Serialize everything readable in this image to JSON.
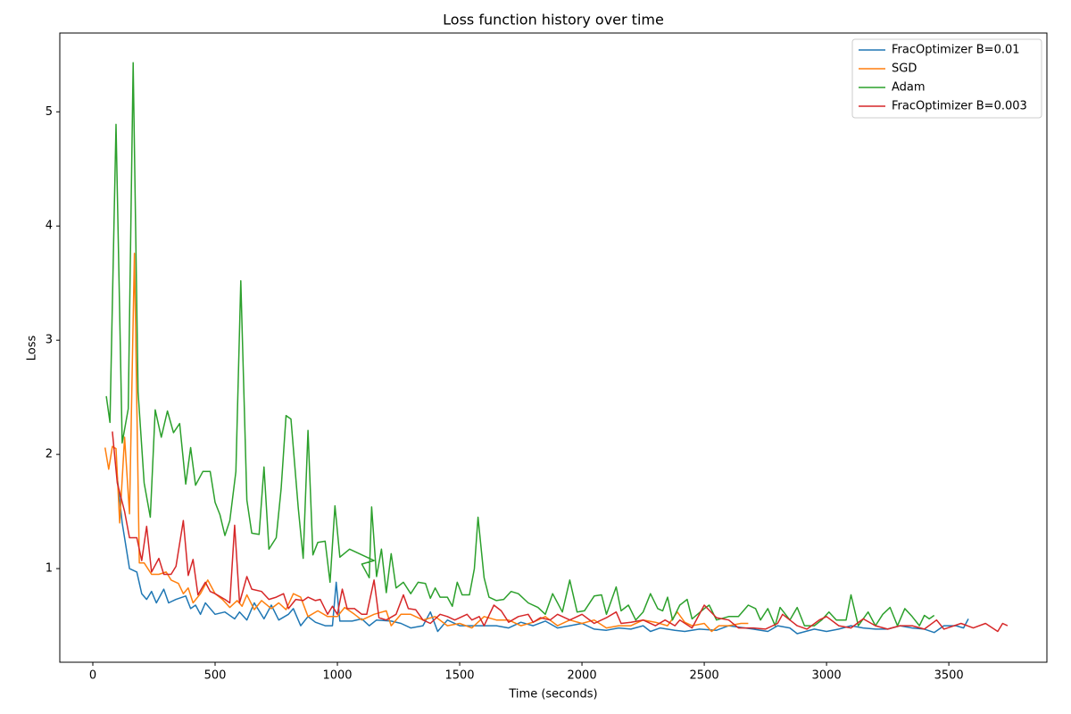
{
  "chart_data": {
    "type": "line",
    "title": "Loss function history over time",
    "xlabel": "Time (seconds)",
    "ylabel": "Loss",
    "xlim": [
      -135,
      3901
    ],
    "ylim": [
      0.18,
      5.69
    ],
    "xticks": [
      0,
      500,
      1000,
      1500,
      2000,
      2500,
      3000,
      3500
    ],
    "yticks": [
      1,
      2,
      3,
      4,
      5
    ],
    "legend": "upper right",
    "grid": false,
    "series": [
      {
        "name": "FracOptimizer B=0.01",
        "color": "#1f77b4",
        "x": [
          100,
          120,
          150,
          180,
          200,
          220,
          240,
          260,
          290,
          310,
          340,
          380,
          400,
          420,
          440,
          460,
          500,
          540,
          580,
          600,
          630,
          660,
          700,
          730,
          760,
          800,
          820,
          850,
          880,
          910,
          950,
          980,
          995,
          1010,
          1060,
          1100,
          1130,
          1160,
          1220,
          1260,
          1300,
          1350,
          1380,
          1410,
          1450,
          1500,
          1550,
          1600,
          1650,
          1700,
          1750,
          1800,
          1850,
          1900,
          1950,
          2000,
          2050,
          2100,
          2150,
          2200,
          2250,
          2280,
          2320,
          2380,
          2420,
          2480,
          2550,
          2600,
          2700,
          2760,
          2800,
          2850,
          2880,
          2950,
          3000,
          3050,
          3100,
          3150,
          3200,
          3250,
          3300,
          3350,
          3400,
          3440,
          3480,
          3530,
          3560,
          3580
        ],
        "values": [
          1.8,
          1.4,
          1.0,
          0.97,
          0.78,
          0.73,
          0.8,
          0.7,
          0.82,
          0.7,
          0.73,
          0.76,
          0.65,
          0.68,
          0.6,
          0.7,
          0.6,
          0.62,
          0.56,
          0.62,
          0.55,
          0.7,
          0.56,
          0.68,
          0.55,
          0.6,
          0.65,
          0.5,
          0.58,
          0.53,
          0.5,
          0.5,
          0.88,
          0.54,
          0.54,
          0.56,
          0.5,
          0.55,
          0.54,
          0.52,
          0.48,
          0.5,
          0.62,
          0.45,
          0.55,
          0.5,
          0.5,
          0.5,
          0.5,
          0.48,
          0.53,
          0.5,
          0.54,
          0.48,
          0.5,
          0.52,
          0.47,
          0.46,
          0.48,
          0.47,
          0.5,
          0.45,
          0.48,
          0.46,
          0.45,
          0.47,
          0.46,
          0.5,
          0.47,
          0.45,
          0.5,
          0.48,
          0.43,
          0.47,
          0.45,
          0.47,
          0.5,
          0.48,
          0.47,
          0.47,
          0.5,
          0.48,
          0.47,
          0.44,
          0.5,
          0.5,
          0.48,
          0.56
        ]
      },
      {
        "name": "SGD",
        "color": "#ff7f0e",
        "x": [
          50,
          65,
          80,
          95,
          110,
          130,
          150,
          170,
          190,
          210,
          240,
          270,
          300,
          320,
          350,
          370,
          390,
          410,
          440,
          470,
          500,
          530,
          560,
          590,
          610,
          630,
          660,
          690,
          730,
          760,
          790,
          820,
          850,
          880,
          920,
          960,
          1000,
          1030,
          1070,
          1100,
          1150,
          1200,
          1220,
          1260,
          1300,
          1350,
          1400,
          1450,
          1500,
          1550,
          1600,
          1650,
          1700,
          1750,
          1800,
          1850,
          1900,
          1950,
          2000,
          2050,
          2100,
          2150,
          2200,
          2250,
          2300,
          2350,
          2390,
          2420,
          2450,
          2500,
          2530,
          2560,
          2600,
          2650,
          2680
        ],
        "values": [
          2.06,
          1.87,
          2.07,
          2.05,
          1.4,
          2.15,
          1.48,
          3.76,
          1.05,
          1.05,
          0.95,
          0.95,
          0.97,
          0.9,
          0.87,
          0.78,
          0.83,
          0.7,
          0.78,
          0.9,
          0.78,
          0.73,
          0.66,
          0.72,
          0.67,
          0.77,
          0.64,
          0.72,
          0.65,
          0.7,
          0.64,
          0.78,
          0.75,
          0.58,
          0.63,
          0.58,
          0.58,
          0.66,
          0.6,
          0.55,
          0.6,
          0.63,
          0.5,
          0.6,
          0.6,
          0.55,
          0.58,
          0.5,
          0.52,
          0.48,
          0.58,
          0.55,
          0.55,
          0.5,
          0.53,
          0.58,
          0.5,
          0.55,
          0.52,
          0.55,
          0.48,
          0.5,
          0.5,
          0.55,
          0.53,
          0.5,
          0.62,
          0.53,
          0.5,
          0.52,
          0.45,
          0.5,
          0.5,
          0.52,
          0.52
        ]
      },
      {
        "name": "Adam",
        "color": "#2ca02c",
        "x": [
          55,
          70,
          95,
          120,
          145,
          165,
          185,
          210,
          235,
          255,
          280,
          305,
          330,
          355,
          380,
          400,
          420,
          450,
          480,
          500,
          520,
          540,
          560,
          585,
          605,
          630,
          650,
          680,
          700,
          720,
          750,
          770,
          790,
          810,
          840,
          860,
          880,
          900,
          920,
          950,
          970,
          990,
          1010,
          1050,
          1150,
          1100,
          1130,
          1140,
          1160,
          1180,
          1200,
          1220,
          1240,
          1270,
          1300,
          1330,
          1360,
          1380,
          1400,
          1420,
          1450,
          1470,
          1490,
          1510,
          1540,
          1560,
          1575,
          1600,
          1620,
          1650,
          1680,
          1710,
          1740,
          1780,
          1820,
          1850,
          1880,
          1920,
          1950,
          1980,
          2010,
          2050,
          2080,
          2100,
          2140,
          2160,
          2190,
          2220,
          2250,
          2280,
          2310,
          2330,
          2350,
          2370,
          2400,
          2430,
          2450,
          2500,
          2520,
          2550,
          2600,
          2640,
          2680,
          2710,
          2730,
          2760,
          2790,
          2810,
          2850,
          2880,
          2910,
          2950,
          2980,
          3010,
          3040,
          3080,
          3100,
          3130,
          3170,
          3200,
          3230,
          3260,
          3290,
          3320,
          3350,
          3380,
          3400,
          3420,
          3440
        ],
        "values": [
          2.51,
          2.28,
          4.89,
          2.1,
          2.4,
          5.43,
          2.55,
          1.75,
          1.45,
          2.39,
          2.15,
          2.38,
          2.19,
          2.27,
          1.74,
          2.06,
          1.73,
          1.85,
          1.85,
          1.58,
          1.47,
          1.29,
          1.42,
          1.85,
          3.52,
          1.6,
          1.31,
          1.3,
          1.89,
          1.17,
          1.27,
          1.7,
          2.34,
          2.31,
          1.53,
          1.09,
          2.21,
          1.12,
          1.23,
          1.24,
          0.88,
          1.55,
          1.1,
          1.17,
          1.07,
          1.04,
          0.92,
          1.54,
          0.93,
          1.17,
          0.79,
          1.13,
          0.83,
          0.88,
          0.78,
          0.88,
          0.87,
          0.74,
          0.83,
          0.75,
          0.75,
          0.67,
          0.88,
          0.77,
          0.77,
          1.0,
          1.45,
          0.92,
          0.75,
          0.72,
          0.73,
          0.8,
          0.78,
          0.7,
          0.66,
          0.6,
          0.78,
          0.62,
          0.9,
          0.62,
          0.63,
          0.76,
          0.77,
          0.6,
          0.84,
          0.63,
          0.68,
          0.55,
          0.62,
          0.78,
          0.65,
          0.63,
          0.75,
          0.55,
          0.68,
          0.73,
          0.56,
          0.65,
          0.68,
          0.55,
          0.58,
          0.58,
          0.68,
          0.65,
          0.55,
          0.65,
          0.5,
          0.66,
          0.55,
          0.66,
          0.5,
          0.5,
          0.55,
          0.62,
          0.55,
          0.55,
          0.77,
          0.5,
          0.62,
          0.5,
          0.6,
          0.66,
          0.5,
          0.65,
          0.58,
          0.5,
          0.59,
          0.56,
          0.59
        ]
      },
      {
        "name": "FracOptimizer B=0.003",
        "color": "#d62728",
        "x": [
          80,
          100,
          130,
          150,
          180,
          200,
          220,
          240,
          270,
          290,
          320,
          340,
          370,
          390,
          410,
          430,
          460,
          480,
          500,
          540,
          560,
          580,
          600,
          630,
          650,
          690,
          720,
          750,
          780,
          800,
          830,
          860,
          880,
          910,
          930,
          960,
          980,
          1000,
          1020,
          1040,
          1070,
          1100,
          1120,
          1150,
          1170,
          1200,
          1240,
          1270,
          1290,
          1320,
          1350,
          1380,
          1420,
          1450,
          1480,
          1530,
          1550,
          1580,
          1600,
          1640,
          1670,
          1700,
          1740,
          1780,
          1800,
          1830,
          1870,
          1900,
          1950,
          2000,
          2050,
          2100,
          2140,
          2160,
          2200,
          2250,
          2300,
          2340,
          2380,
          2400,
          2450,
          2500,
          2550,
          2600,
          2640,
          2700,
          2750,
          2800,
          2820,
          2850,
          2880,
          2920,
          2970,
          3000,
          3050,
          3100,
          3150,
          3200,
          3250,
          3300,
          3350,
          3400,
          3450,
          3480,
          3550,
          3600,
          3650,
          3700,
          3720,
          3740
        ],
        "values": [
          2.2,
          1.75,
          1.5,
          1.27,
          1.27,
          1.07,
          1.37,
          0.97,
          1.09,
          0.95,
          0.95,
          1.02,
          1.42,
          0.94,
          1.08,
          0.77,
          0.88,
          0.8,
          0.78,
          0.73,
          0.7,
          1.38,
          0.7,
          0.93,
          0.82,
          0.8,
          0.73,
          0.75,
          0.78,
          0.65,
          0.73,
          0.72,
          0.75,
          0.72,
          0.73,
          0.6,
          0.67,
          0.6,
          0.82,
          0.65,
          0.65,
          0.6,
          0.6,
          0.9,
          0.57,
          0.55,
          0.6,
          0.77,
          0.65,
          0.64,
          0.55,
          0.52,
          0.6,
          0.58,
          0.55,
          0.6,
          0.55,
          0.58,
          0.5,
          0.68,
          0.63,
          0.53,
          0.58,
          0.6,
          0.53,
          0.57,
          0.55,
          0.6,
          0.55,
          0.6,
          0.52,
          0.57,
          0.62,
          0.52,
          0.53,
          0.55,
          0.5,
          0.55,
          0.5,
          0.55,
          0.48,
          0.68,
          0.57,
          0.55,
          0.48,
          0.48,
          0.47,
          0.52,
          0.6,
          0.55,
          0.5,
          0.47,
          0.55,
          0.58,
          0.5,
          0.48,
          0.56,
          0.5,
          0.47,
          0.5,
          0.5,
          0.47,
          0.55,
          0.47,
          0.52,
          0.48,
          0.52,
          0.45,
          0.52,
          0.5
        ]
      }
    ]
  }
}
